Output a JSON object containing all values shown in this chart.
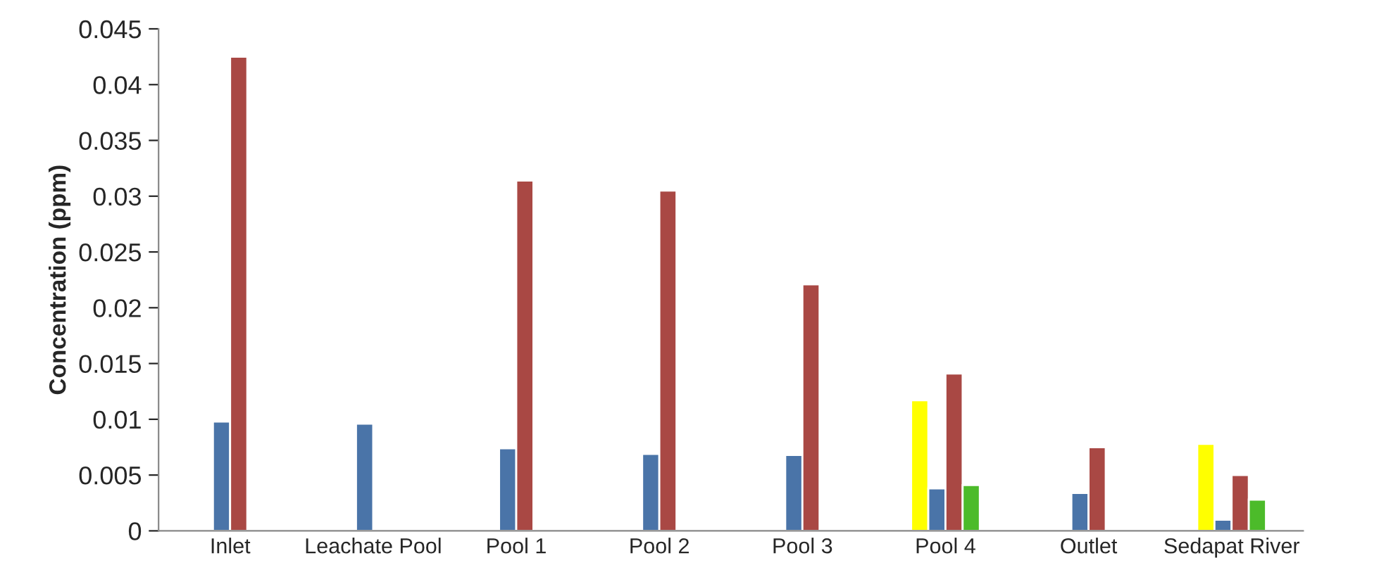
{
  "chart_data": {
    "type": "bar",
    "ylabel": "Concentration (ppm)",
    "categories": [
      "Inlet",
      "Leachate Pool",
      "Pool 1",
      "Pool 2",
      "Pool 3",
      "Pool 4",
      "Outlet",
      "Sedapat River"
    ],
    "series": [
      {
        "color": "#ffff00",
        "values": [
          null,
          null,
          null,
          null,
          null,
          0.0117,
          null,
          0.0078
        ]
      },
      {
        "color": "#4a74a8",
        "values": [
          0.0098,
          0.0096,
          0.0074,
          0.0069,
          0.0068,
          0.0038,
          0.0034,
          0.001
        ]
      },
      {
        "color": "#a94844",
        "values": [
          0.0425,
          null,
          0.0314,
          0.0305,
          0.0221,
          0.0141,
          0.0075,
          0.005
        ]
      },
      {
        "color": "#4cbb2a",
        "values": [
          null,
          null,
          null,
          null,
          null,
          0.0041,
          null,
          0.0028
        ]
      }
    ],
    "ylim": [
      0,
      0.045
    ],
    "yticks": [
      0,
      0.005,
      0.01,
      0.015,
      0.02,
      0.025,
      0.03,
      0.035,
      0.04,
      0.045
    ],
    "grid": false,
    "legend": false
  }
}
